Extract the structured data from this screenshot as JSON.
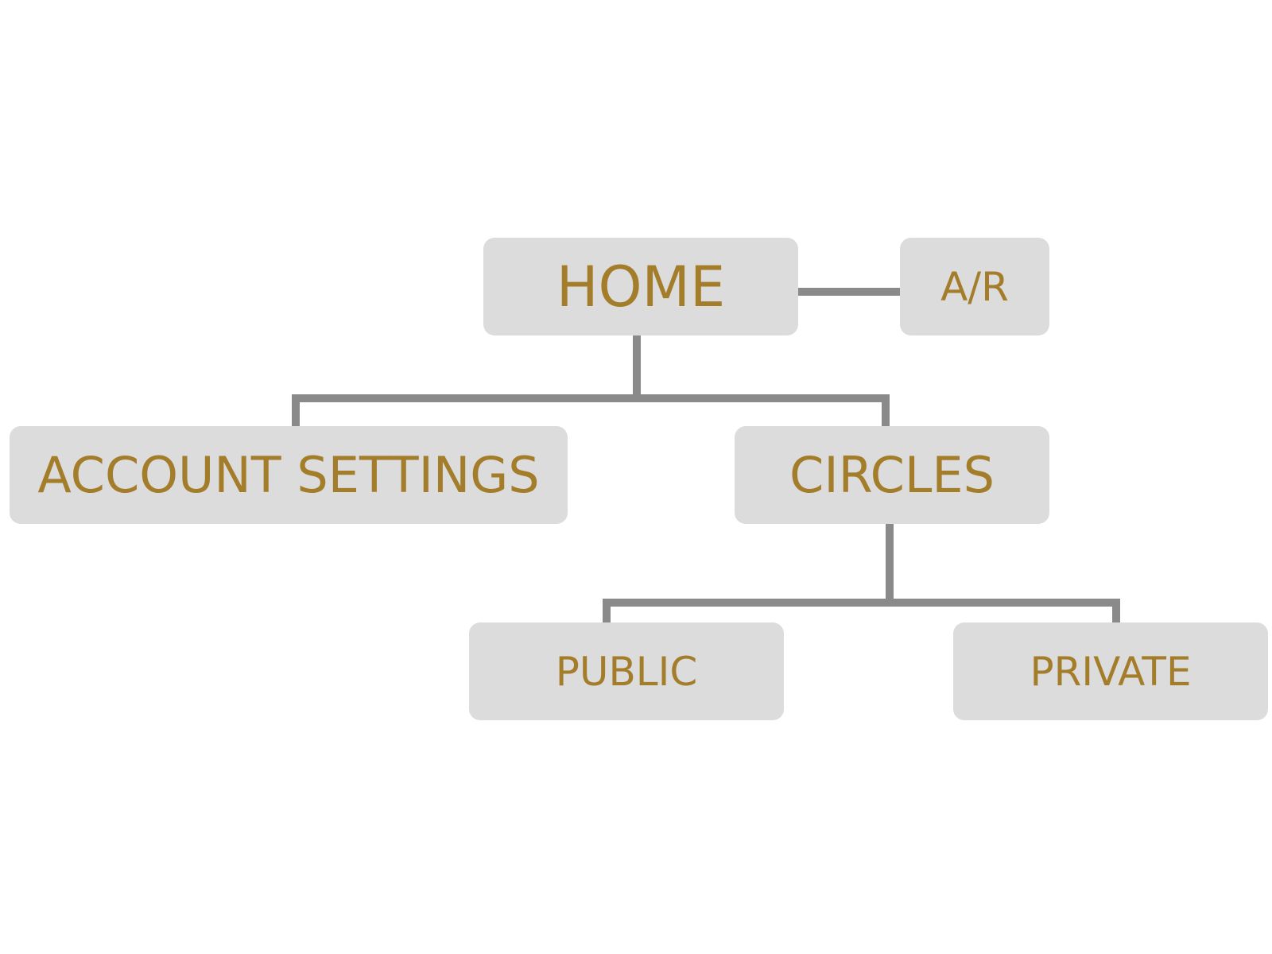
{
  "diagram": {
    "connector_color": "#8a8a8a",
    "node_fill": "#dcdcdc",
    "label_color": "#a37d2a",
    "nodes": {
      "home": "HOME",
      "ar": "A/R",
      "account_settings": "ACCOUNT SETTINGS",
      "circles": "CIRCLES",
      "public": "PUBLIC",
      "private": "PRIVATE"
    },
    "edges": [
      [
        "home",
        "ar"
      ],
      [
        "home",
        "account_settings"
      ],
      [
        "home",
        "circles"
      ],
      [
        "circles",
        "public"
      ],
      [
        "circles",
        "private"
      ]
    ]
  }
}
